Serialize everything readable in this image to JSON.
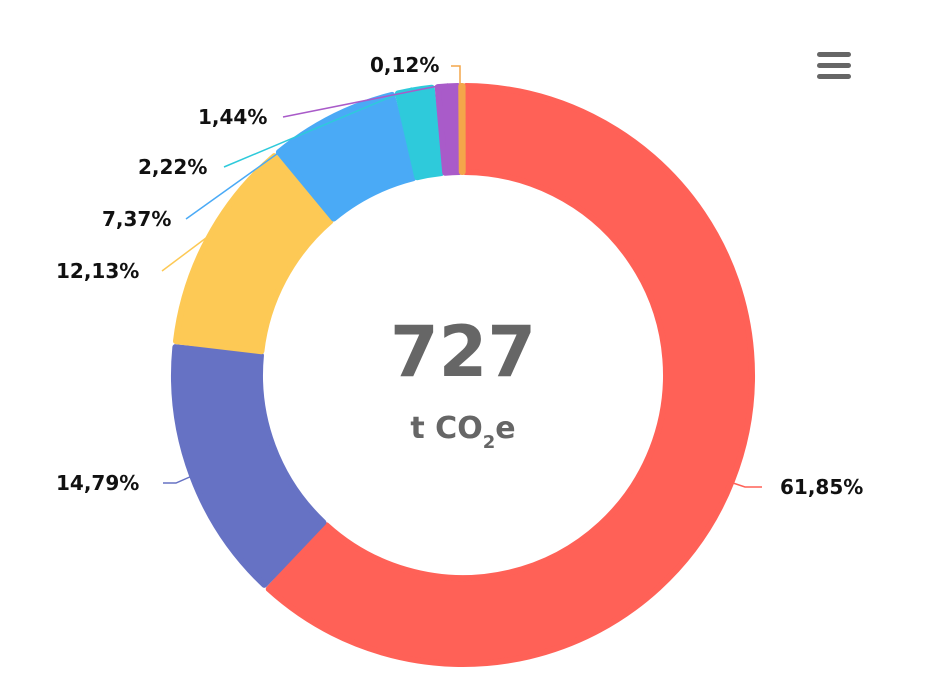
{
  "chart_data": {
    "type": "pie",
    "center_value": "727",
    "center_unit": {
      "prefix": "t CO",
      "subscript": "2",
      "suffix": "e"
    },
    "series": [
      {
        "value": 61.85,
        "label": "61,85%",
        "color": "#FF6157"
      },
      {
        "value": 14.79,
        "label": "14,79%",
        "color": "#6672C4"
      },
      {
        "value": 12.13,
        "label": "12,13%",
        "color": "#FDC955"
      },
      {
        "value": 7.37,
        "label": "7,37%",
        "color": "#4AAAF6"
      },
      {
        "value": 2.22,
        "label": "2,22%",
        "color": "#2ECADB"
      },
      {
        "value": 1.44,
        "label": "1,44%",
        "color": "#A95BC9"
      },
      {
        "value": 0.12,
        "label": "0,12%",
        "color": "#F4A64A"
      }
    ]
  },
  "menu": {
    "icon": "hamburger-menu-icon"
  }
}
